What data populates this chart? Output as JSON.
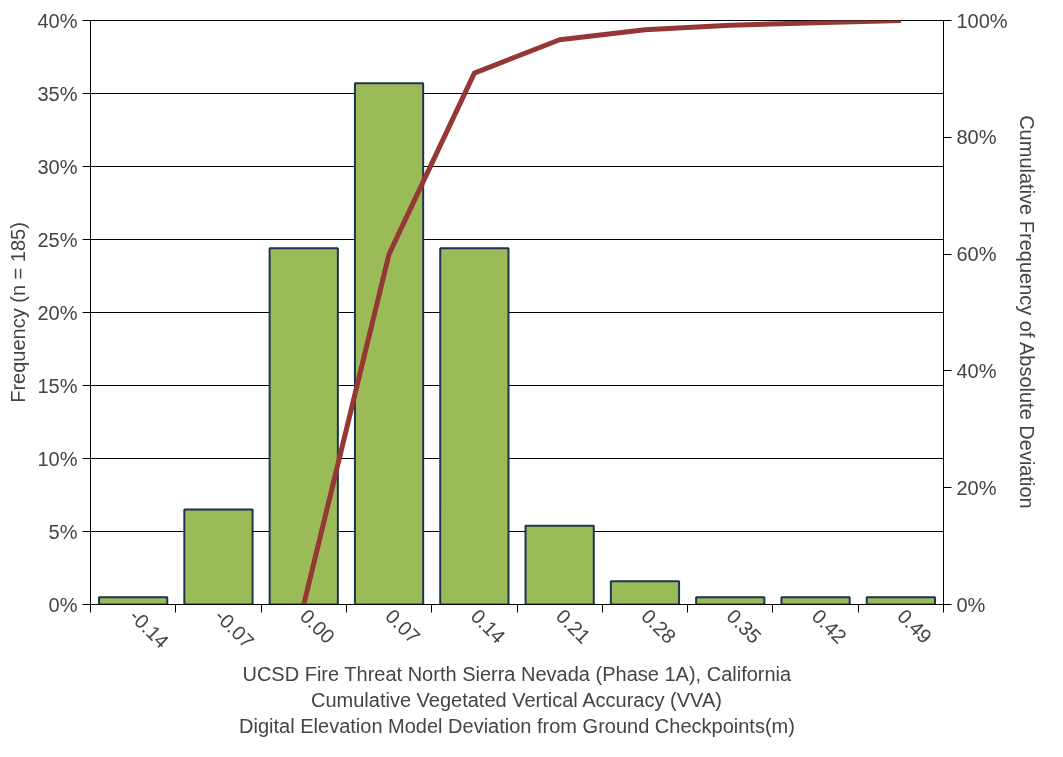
{
  "chart_data": {
    "type": "bar",
    "categories": [
      "-0.14",
      "-0.07",
      "0.00",
      "0.07",
      "0.14",
      "0.21",
      "0.28",
      "0.35",
      "0.42",
      "0.49"
    ],
    "series": [
      {
        "color": "#9bbb59",
        "values": [
          0.5,
          6.5,
          24.4,
          35.7,
          24.4,
          5.4,
          1.6,
          0.5,
          0.5,
          0.5
        ]
      },
      {
        "type": "line",
        "axis": "y2",
        "color": "#953735",
        "values": [
          null,
          null,
          0,
          60,
          91,
          96.7,
          98.4,
          99.2,
          99.6,
          100
        ]
      }
    ],
    "xlabel": "UCSD Fire Threat North Sierra Nevada (Phase 1A), California\nCumulative Vegetated Vertical Accuracy (VVA)\nDigital Elevation Model Deviation from Ground Checkpoints(m)",
    "ylabel": "Frequency (n = 185)",
    "y2label": "Cumulative Frequency of Absolute Deviation",
    "ylim": [
      0,
      40
    ],
    "yticks": [
      {
        "value": 0,
        "label": "0%"
      },
      {
        "value": 5,
        "label": "5%"
      },
      {
        "value": 10,
        "label": "10%"
      },
      {
        "value": 15,
        "label": "15%"
      },
      {
        "value": 20,
        "label": "20%"
      },
      {
        "value": 25,
        "label": "25%"
      },
      {
        "value": 30,
        "label": "30%"
      },
      {
        "value": 35,
        "label": "35%"
      },
      {
        "value": 40,
        "label": "40%"
      }
    ],
    "y2lim": [
      0,
      100
    ],
    "y2ticks": [
      {
        "value": 0,
        "label": "0%"
      },
      {
        "value": 20,
        "label": "20%"
      },
      {
        "value": 40,
        "label": "40%"
      },
      {
        "value": 60,
        "label": "60%"
      },
      {
        "value": 80,
        "label": "80%"
      },
      {
        "value": 100,
        "label": "100%"
      }
    ],
    "grid": "y"
  }
}
